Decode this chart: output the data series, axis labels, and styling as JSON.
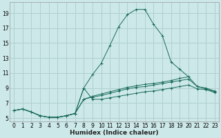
{
  "xlabel": "Humidex (Indice chaleur)",
  "ylabel": "",
  "bg_color": "#cce8e8",
  "grid_color": "#b0d0d0",
  "line_color": "#1a6b5a",
  "xlim": [
    -0.5,
    23.5
  ],
  "ylim": [
    4.5,
    20.5
  ],
  "xticks": [
    0,
    1,
    2,
    3,
    4,
    5,
    6,
    7,
    8,
    9,
    10,
    11,
    12,
    13,
    14,
    15,
    16,
    17,
    18,
    19,
    20,
    21,
    22,
    23
  ],
  "yticks": [
    5,
    7,
    9,
    11,
    13,
    15,
    17,
    19
  ],
  "series": [
    {
      "x": [
        0,
        1,
        2,
        3,
        4,
        5,
        6,
        7,
        8,
        9,
        10,
        11,
        12,
        13,
        14,
        15,
        16,
        17,
        18,
        19,
        20,
        21,
        22,
        23
      ],
      "y": [
        6.0,
        6.2,
        5.8,
        5.3,
        5.1,
        5.1,
        5.3,
        5.6,
        9.0,
        10.8,
        12.3,
        14.7,
        17.2,
        18.8,
        19.5,
        19.5,
        17.5,
        16.0,
        12.5,
        11.5,
        10.5,
        null,
        null,
        null
      ]
    },
    {
      "x": [
        0,
        1,
        2,
        3,
        4,
        5,
        6,
        7,
        8,
        9,
        10,
        11,
        12,
        13,
        14,
        15,
        16,
        17,
        18,
        19,
        20,
        21,
        22,
        23
      ],
      "y": [
        6.0,
        6.2,
        5.8,
        5.3,
        5.1,
        5.1,
        5.3,
        5.6,
        7.5,
        7.8,
        8.0,
        8.3,
        8.6,
        8.9,
        9.1,
        9.2,
        9.4,
        9.6,
        9.8,
        10.0,
        10.2,
        9.2,
        8.9,
        8.5
      ]
    },
    {
      "x": [
        0,
        1,
        2,
        3,
        4,
        5,
        6,
        7,
        8,
        9,
        10,
        11,
        12,
        13,
        14,
        15,
        16,
        17,
        18,
        19,
        20,
        21,
        22,
        23
      ],
      "y": [
        6.0,
        6.2,
        5.8,
        5.3,
        5.1,
        5.1,
        5.3,
        5.6,
        7.5,
        7.9,
        8.2,
        8.5,
        8.8,
        9.1,
        9.3,
        9.5,
        9.6,
        9.8,
        10.0,
        10.3,
        10.5,
        9.2,
        9.0,
        8.6
      ]
    },
    {
      "x": [
        0,
        1,
        2,
        3,
        4,
        5,
        6,
        7,
        8,
        9,
        10,
        11,
        12,
        13,
        14,
        15,
        16,
        17,
        18,
        19,
        20,
        21,
        22,
        23
      ],
      "y": [
        6.0,
        6.2,
        5.8,
        5.3,
        5.1,
        5.1,
        5.3,
        5.6,
        9.0,
        7.5,
        7.5,
        7.7,
        7.9,
        8.1,
        8.3,
        8.5,
        8.6,
        8.8,
        9.0,
        9.2,
        9.4,
        8.9,
        8.8,
        8.4
      ]
    }
  ]
}
